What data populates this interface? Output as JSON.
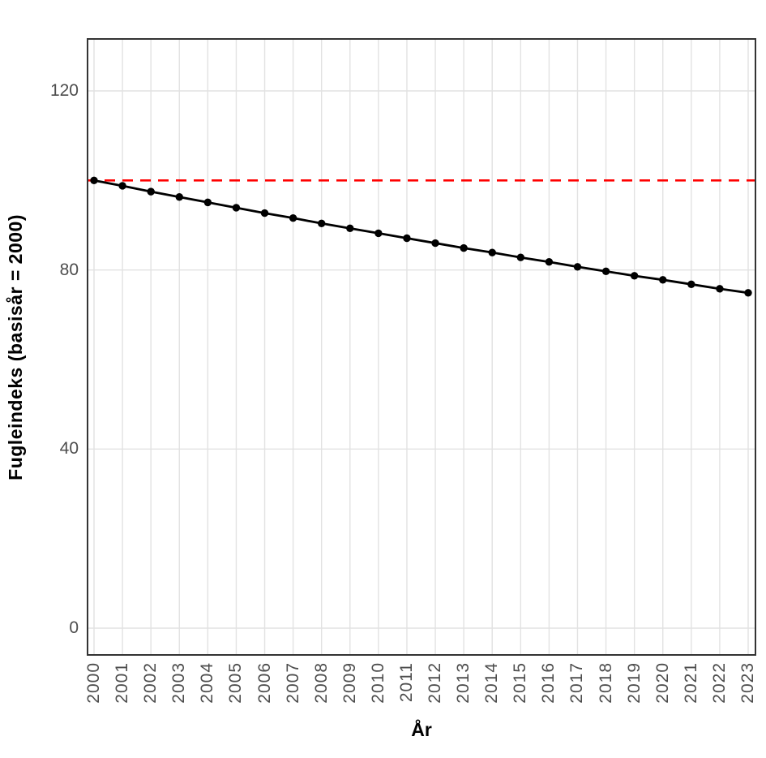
{
  "figure": {
    "background": "#FFFFFF"
  },
  "chart_data": {
    "type": "line",
    "title": "",
    "xlabel": "År",
    "ylabel": "Fugleindeks (basisår = 2000)",
    "x": [
      2000,
      2001,
      2002,
      2003,
      2004,
      2005,
      2006,
      2007,
      2008,
      2009,
      2010,
      2011,
      2012,
      2013,
      2014,
      2015,
      2016,
      2017,
      2018,
      2019,
      2020,
      2021,
      2022,
      2023
    ],
    "series": [
      {
        "name": "Fugleindeks",
        "color": "#000000",
        "marker": "circle",
        "values": [
          100.0,
          98.8,
          97.5,
          96.3,
          95.1,
          93.9,
          92.7,
          91.6,
          90.4,
          89.3,
          88.2,
          87.1,
          86.0,
          84.9,
          83.9,
          82.8,
          81.8,
          80.7,
          79.7,
          78.7,
          77.8,
          76.8,
          75.8,
          74.9
        ]
      }
    ],
    "reference_line": {
      "value": 100,
      "color": "#FF0000",
      "style": "dashed"
    },
    "yticks": [
      0,
      40,
      80,
      120
    ],
    "ylim": [
      -0.5,
      132
    ],
    "xlim": [
      2000,
      2023
    ],
    "grid": true,
    "legend": "none",
    "colors": {
      "grid": "#E2E2E2",
      "panel_border": "#333333",
      "tick_label": "#4D4D4D",
      "axis_title": "#000000",
      "panel_background": "#FFFFFF"
    }
  }
}
